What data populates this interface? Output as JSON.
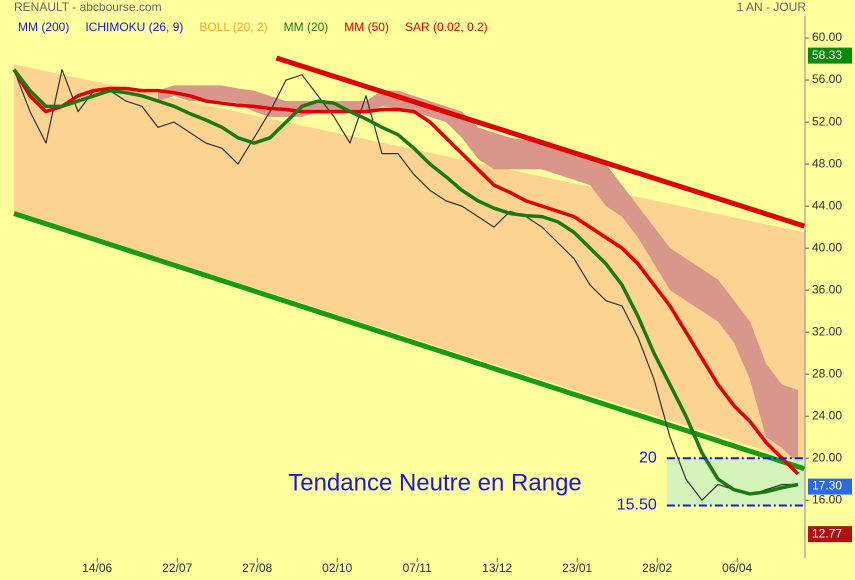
{
  "chart_data": {
    "type": "stock",
    "title": "RENAULT - abcbourse.com",
    "period": "1 AN - JOUR",
    "legend": [
      {
        "label": "MM (200)",
        "color": "#1a1ad8"
      },
      {
        "label": "ICHIMOKU (26, 9)",
        "color": "#1a1ad8"
      },
      {
        "label": "BOLL (20, 2)",
        "color": "#f5a623"
      },
      {
        "label": "MM (20)",
        "color": "#1a7a10"
      },
      {
        "label": "MM (50)",
        "color": "#e00000"
      },
      {
        "label": "SAR (0.02, 0.2)",
        "color": "#e00000"
      }
    ],
    "x": [
      0,
      5,
      10,
      15,
      20,
      25,
      30,
      35,
      40,
      45,
      50,
      55,
      60,
      65,
      70,
      75,
      80,
      85,
      90,
      95,
      100,
      105,
      110,
      115,
      120,
      125,
      130,
      135,
      140,
      145,
      150,
      155,
      160,
      165,
      170,
      175,
      180,
      185,
      190,
      195,
      200,
      205,
      210,
      215,
      220,
      225,
      230,
      235,
      240,
      245
    ],
    "xlim": [
      0,
      247
    ],
    "xticks": [
      {
        "value": 26,
        "label": "14/06"
      },
      {
        "value": 51,
        "label": "22/07"
      },
      {
        "value": 76,
        "label": "27/08"
      },
      {
        "value": 101,
        "label": "02/10"
      },
      {
        "value": 126,
        "label": "07/11"
      },
      {
        "value": 151,
        "label": "13/12"
      },
      {
        "value": 176,
        "label": "23/01"
      },
      {
        "value": 201,
        "label": "28/02"
      },
      {
        "value": 226,
        "label": "06/04"
      }
    ],
    "ylim": [
      10.5,
      62.1
    ],
    "yticks": [
      {
        "value": 16,
        "label": "16.00"
      },
      {
        "value": 20,
        "label": "20.00"
      },
      {
        "value": 24,
        "label": "24.00"
      },
      {
        "value": 28,
        "label": "28.00"
      },
      {
        "value": 32,
        "label": "32.00"
      },
      {
        "value": 36,
        "label": "36.00"
      },
      {
        "value": 40,
        "label": "40.00"
      },
      {
        "value": 44,
        "label": "44.00"
      },
      {
        "value": 48,
        "label": "48.00"
      },
      {
        "value": 52,
        "label": "52.00"
      },
      {
        "value": 56,
        "label": "56.00"
      },
      {
        "value": 60,
        "label": "60.00"
      }
    ],
    "band": {
      "color": "#fcd390",
      "x": [
        0,
        247
      ],
      "upper": [
        57.5,
        41.5
      ],
      "lower": [
        43.5,
        19.5
      ]
    },
    "cloud": {
      "color": "#d9968a",
      "upper": [
        null,
        null,
        null,
        null,
        null,
        null,
        null,
        null,
        null,
        55,
        55.5,
        55.5,
        55.5,
        55.5,
        55.2,
        55,
        54.5,
        54,
        54,
        54,
        54,
        54,
        54,
        55,
        55,
        54.5,
        54,
        53.5,
        53,
        51.5,
        51,
        50.5,
        50.3,
        50,
        49.5,
        49,
        48.5,
        48,
        46,
        44,
        42,
        40,
        39,
        38,
        37,
        35,
        33,
        29,
        27,
        26.5
      ],
      "lower": [
        null,
        null,
        null,
        null,
        null,
        null,
        null,
        null,
        null,
        54,
        54.5,
        54,
        54,
        54,
        53.8,
        53,
        52.5,
        52.5,
        52.5,
        53,
        53,
        53,
        53,
        53.5,
        53.3,
        53,
        52.5,
        52,
        50.5,
        48.5,
        47.5,
        47.5,
        47.5,
        47.5,
        47,
        46.5,
        46,
        44,
        43,
        41,
        38.5,
        36,
        35,
        34,
        33,
        31,
        27.5,
        22,
        21,
        19.5
      ]
    },
    "series": [
      {
        "color": "#333333",
        "width": 1.2,
        "values": [
          57,
          53,
          50,
          57,
          53,
          55,
          55,
          54,
          53.5,
          51.5,
          52,
          51,
          50,
          49.5,
          48,
          50.5,
          53,
          56,
          56.5,
          54.5,
          52.5,
          50,
          54.5,
          49,
          49,
          47,
          45.5,
          44.5,
          44,
          43,
          42,
          43.5,
          43,
          42,
          40.5,
          39,
          36.5,
          35,
          34.5,
          31.5,
          27.5,
          22,
          18,
          16,
          17.5,
          17,
          16.5,
          17,
          17.5,
          17.5
        ]
      },
      {
        "color": "#e00000",
        "width": 3.5,
        "values": [
          57,
          54.5,
          53,
          53.5,
          54.5,
          55,
          55.2,
          55.2,
          55,
          55,
          54.8,
          54.5,
          54,
          53.8,
          53.6,
          53.5,
          53.3,
          53.2,
          53,
          53,
          53,
          53,
          53,
          53.2,
          53.2,
          53,
          52,
          50.5,
          49,
          47.5,
          46,
          45.3,
          44.5,
          44,
          43.5,
          43,
          42,
          41,
          40,
          38.5,
          36.5,
          34.5,
          32,
          29.5,
          27,
          25,
          23.5,
          21.5,
          20,
          18.5
        ]
      },
      {
        "color": "#1a7a10",
        "width": 3.5,
        "values": [
          57,
          55,
          53.5,
          53.5,
          54,
          54.5,
          55,
          54.8,
          54.5,
          54,
          53.5,
          52.8,
          52.2,
          51.5,
          50.5,
          50,
          50.5,
          52,
          53.5,
          54,
          53.8,
          53,
          52.3,
          51.5,
          50.8,
          49.5,
          48,
          46.8,
          45.5,
          44.5,
          43.8,
          43.3,
          43.1,
          43,
          42.5,
          41.5,
          40,
          38.5,
          36.5,
          33.5,
          30,
          27,
          24,
          20.5,
          18,
          17,
          16.6,
          16.8,
          17.2,
          17.5
        ]
      }
    ],
    "trendlines": [
      {
        "color": "#e00000",
        "x": [
          82,
          247
        ],
        "y": [
          58.1,
          42.1
        ]
      },
      {
        "color": "#1a9a10",
        "x": [
          0,
          247
        ],
        "y": [
          43.3,
          19.0
        ]
      }
    ],
    "range": {
      "x_start": 204,
      "color": "#1a1ad8",
      "fill": "#c8f0c0",
      "top": 20,
      "bottom": {
        "value": 15.5,
        "label": "15.50"
      }
    },
    "annotation": "Tendance Neutre en Range",
    "price_tags": [
      {
        "value": 58.33,
        "color": "#0a8a0a"
      },
      {
        "value": 17.3,
        "label": "17.30",
        "color": "#2a6ae8"
      },
      {
        "value": 12.77,
        "color": "#b01010"
      }
    ]
  }
}
